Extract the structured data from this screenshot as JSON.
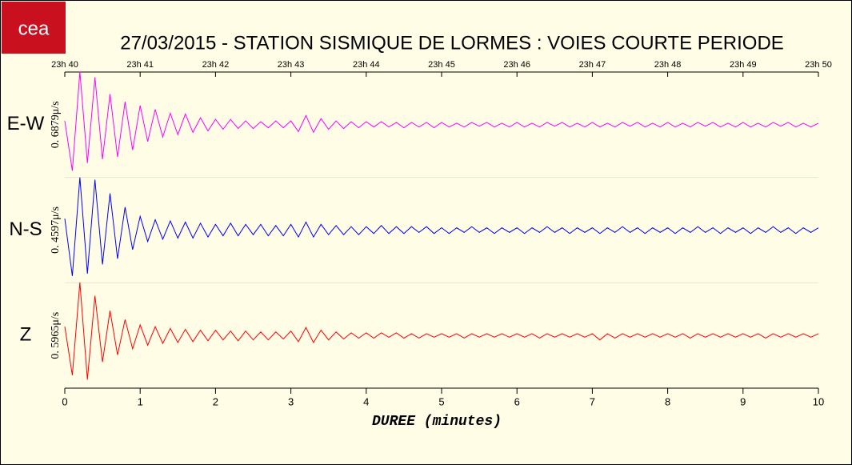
{
  "chart_data": {
    "type": "seismogram",
    "logo": "cea",
    "title": "27/03/2015  -  STATION SISMIQUE DE LORMES : VOIES COURTE PERIODE",
    "xlabel": "DUREE (minutes)",
    "xlim": [
      0,
      10
    ],
    "xticks": [
      0,
      1,
      2,
      3,
      4,
      5,
      6,
      7,
      8,
      9,
      10
    ],
    "top_xticks": [
      {
        "value": 0,
        "label": "23h 40"
      },
      {
        "value": 1,
        "label": "23h 41"
      },
      {
        "value": 2,
        "label": "23h 42"
      },
      {
        "value": 3,
        "label": "23h 43"
      },
      {
        "value": 4,
        "label": "23h 44"
      },
      {
        "value": 5,
        "label": "23h 45"
      },
      {
        "value": 6,
        "label": "23h 46"
      },
      {
        "value": 7,
        "label": "23h 47"
      },
      {
        "value": 8,
        "label": "23h 48"
      },
      {
        "value": 9,
        "label": "23h 49"
      },
      {
        "value": 10,
        "label": "23h 50"
      }
    ],
    "x": [
      0,
      0.1,
      0.2,
      0.3,
      0.4,
      0.5,
      0.6,
      0.7,
      0.8,
      0.9,
      1,
      1.1,
      1.2,
      1.3,
      1.4,
      1.5,
      1.6,
      1.7,
      1.8,
      1.9,
      2,
      2.1,
      2.2,
      2.3,
      2.4,
      2.5,
      2.6,
      2.7,
      2.8,
      2.9,
      3,
      3.1,
      3.2,
      3.3,
      3.4,
      3.5,
      3.6,
      3.7,
      3.8,
      3.9,
      4,
      4.1,
      4.2,
      4.3,
      4.4,
      4.5,
      4.6,
      4.7,
      4.8,
      4.9,
      5,
      5.1,
      5.2,
      5.3,
      5.4,
      5.5,
      5.6,
      5.7,
      5.8,
      5.9,
      6,
      6.1,
      6.2,
      6.3,
      6.4,
      6.5,
      6.6,
      6.7,
      6.8,
      6.9,
      7,
      7.1,
      7.2,
      7.3,
      7.4,
      7.5,
      7.6,
      7.7,
      7.8,
      7.9,
      8,
      8.1,
      8.2,
      8.3,
      8.4,
      8.5,
      8.6,
      8.7,
      8.8,
      8.9,
      9,
      9.1,
      9.2,
      9.3,
      9.4,
      9.5,
      9.6,
      9.7,
      9.8,
      9.9,
      10
    ],
    "series": [
      {
        "name": "E-W",
        "color": "#ff00ff",
        "scale": {
          "value": 0.6879,
          "label": "0. 6879μ/s"
        },
        "values": [
          0.05,
          0.6,
          0.69,
          0.5,
          0.62,
          0.45,
          0.4,
          0.42,
          0.3,
          0.33,
          0.25,
          0.22,
          0.2,
          0.16,
          0.15,
          0.13,
          0.14,
          0.1,
          0.09,
          0.08,
          0.07,
          0.06,
          0.07,
          0.05,
          0.05,
          0.05,
          0.04,
          0.04,
          0.05,
          0.04,
          0.05,
          0.09,
          0.12,
          0.1,
          0.08,
          0.06,
          0.05,
          0.05,
          0.04,
          0.04,
          0.04,
          0.03,
          0.04,
          0.03,
          0.03,
          0.04,
          0.03,
          0.03,
          0.03,
          0.04,
          0.03,
          0.03,
          0.02,
          0.03,
          0.03,
          0.02,
          0.03,
          0.03,
          0.02,
          0.03,
          0.03,
          0.03,
          0.02,
          0.03,
          0.03,
          0.02,
          0.03,
          0.03,
          0.02,
          0.03,
          0.03,
          0.03,
          0.02,
          0.03,
          0.03,
          0.02,
          0.03,
          0.03,
          0.02,
          0.03,
          0.03,
          0.03,
          0.02,
          0.03,
          0.03,
          0.02,
          0.03,
          0.03,
          0.02,
          0.03,
          0.03,
          0.03,
          0.02,
          0.03,
          0.03,
          0.02,
          0.03,
          0.03,
          0.02,
          0.03,
          0.02
        ]
      },
      {
        "name": "N-S",
        "color": "#0000ff",
        "scale": {
          "value": 0.4597,
          "label": "0. 4597μ/s"
        },
        "values": [
          0.1,
          0.4,
          0.46,
          0.38,
          0.44,
          0.3,
          0.32,
          0.25,
          0.2,
          0.17,
          0.12,
          0.1,
          0.09,
          0.08,
          0.08,
          0.07,
          0.07,
          0.07,
          0.06,
          0.06,
          0.05,
          0.05,
          0.06,
          0.05,
          0.05,
          0.04,
          0.05,
          0.05,
          0.04,
          0.05,
          0.05,
          0.06,
          0.07,
          0.06,
          0.05,
          0.04,
          0.04,
          0.04,
          0.03,
          0.04,
          0.03,
          0.03,
          0.04,
          0.03,
          0.03,
          0.03,
          0.03,
          0.02,
          0.03,
          0.03,
          0.02,
          0.03,
          0.02,
          0.02,
          0.03,
          0.02,
          0.02,
          0.03,
          0.02,
          0.02,
          0.02,
          0.03,
          0.02,
          0.02,
          0.03,
          0.02,
          0.02,
          0.03,
          0.02,
          0.02,
          0.02,
          0.03,
          0.02,
          0.02,
          0.03,
          0.02,
          0.02,
          0.03,
          0.02,
          0.02,
          0.02,
          0.03,
          0.02,
          0.02,
          0.03,
          0.02,
          0.02,
          0.03,
          0.02,
          0.02,
          0.02,
          0.03,
          0.02,
          0.02,
          0.03,
          0.02,
          0.02,
          0.03,
          0.02,
          0.02,
          0.02
        ]
      },
      {
        "name": "Z",
        "color": "#ff0000",
        "scale": {
          "value": 0.5965,
          "label": "0. 5965μ/s"
        },
        "values": [
          0.1,
          0.45,
          0.6,
          0.5,
          0.45,
          0.3,
          0.28,
          0.22,
          0.18,
          0.15,
          0.12,
          0.11,
          0.1,
          0.09,
          0.08,
          0.08,
          0.07,
          0.07,
          0.06,
          0.06,
          0.06,
          0.05,
          0.05,
          0.06,
          0.05,
          0.05,
          0.04,
          0.05,
          0.04,
          0.04,
          0.05,
          0.07,
          0.09,
          0.08,
          0.06,
          0.05,
          0.04,
          0.04,
          0.03,
          0.03,
          0.03,
          0.03,
          0.03,
          0.02,
          0.03,
          0.03,
          0.02,
          0.03,
          0.02,
          0.02,
          0.02,
          0.02,
          0.02,
          0.03,
          0.02,
          0.02,
          0.02,
          0.02,
          0.02,
          0.02,
          0.02,
          0.02,
          0.02,
          0.03,
          0.02,
          0.02,
          0.02,
          0.02,
          0.02,
          0.02,
          0.02,
          0.05,
          0.02,
          0.03,
          0.02,
          0.02,
          0.02,
          0.02,
          0.02,
          0.02,
          0.02,
          0.02,
          0.02,
          0.03,
          0.02,
          0.02,
          0.02,
          0.02,
          0.02,
          0.02,
          0.02,
          0.02,
          0.02,
          0.03,
          0.02,
          0.02,
          0.02,
          0.02,
          0.02,
          0.02,
          0.02
        ]
      }
    ]
  }
}
